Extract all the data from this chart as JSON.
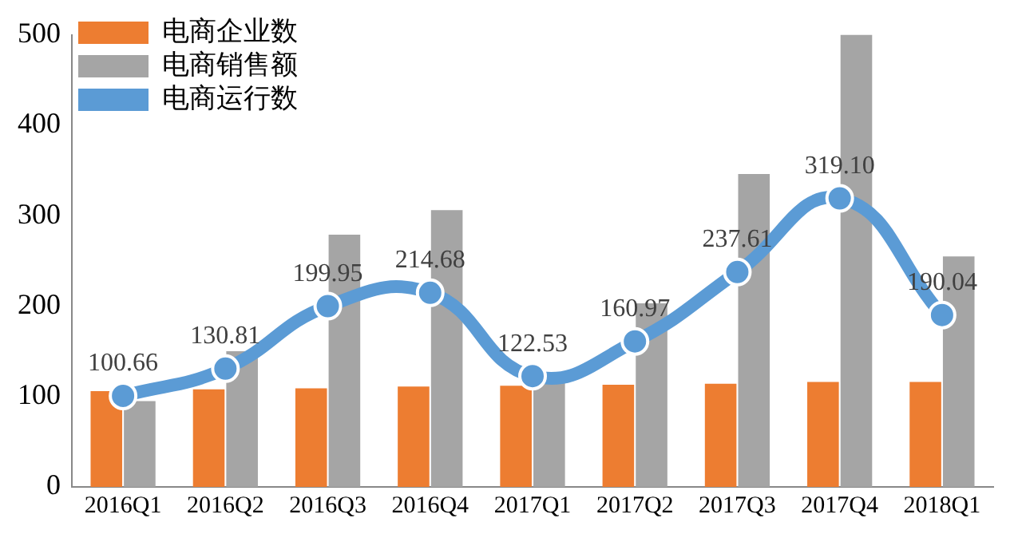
{
  "chart_data": {
    "type": "bar",
    "categories": [
      "2016Q1",
      "2016Q2",
      "2016Q3",
      "2016Q4",
      "2017Q1",
      "2017Q2",
      "2017Q3",
      "2017Q4",
      "2018Q1"
    ],
    "series": [
      {
        "name": "电商企业数",
        "color": "#ed7d31",
        "values": [
          106,
          108,
          109,
          111,
          112,
          113,
          114,
          116,
          116
        ]
      },
      {
        "name": "电商销售额",
        "color": "#a5a5a5",
        "values": [
          95,
          150,
          279,
          306,
          118,
          203,
          346,
          500,
          255
        ]
      },
      {
        "name": "电商运行数",
        "type": "line",
        "color": "#5b9bd5",
        "marker": "circle",
        "values": [
          100.66,
          130.81,
          199.95,
          214.68,
          122.53,
          160.97,
          237.61,
          319.1,
          190.04
        ],
        "value_labels": [
          "100.66",
          "130.81",
          "199.95",
          "214.68",
          "122.53",
          "160.97",
          "237.61",
          "319.10",
          "190.04"
        ]
      }
    ],
    "ylim": [
      0,
      500
    ],
    "yticks": [
      0,
      100,
      200,
      300,
      400,
      500
    ],
    "grid": false,
    "legend": "top left"
  }
}
